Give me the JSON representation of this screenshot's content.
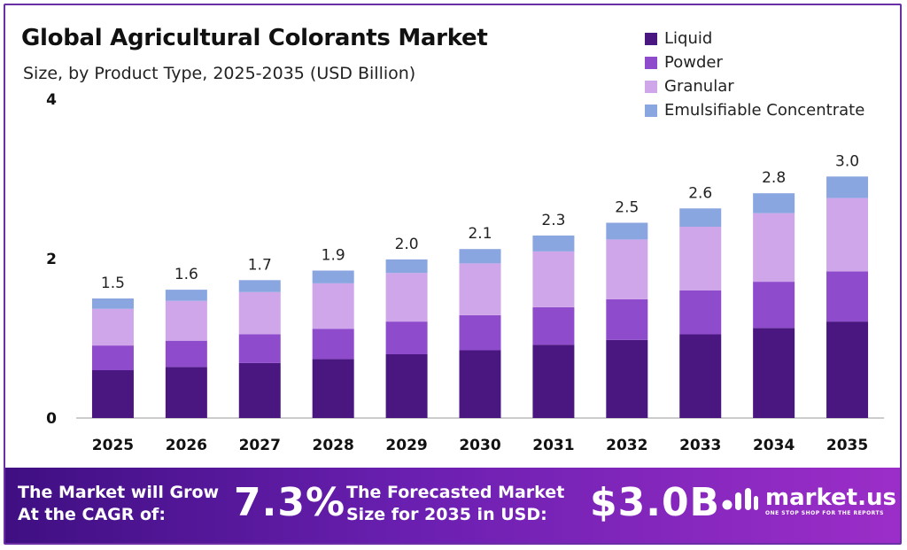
{
  "chart_data": {
    "type": "bar",
    "stacked": true,
    "title": "Global Agricultural Colorants Market",
    "subtitle": "Size, by Product Type, 2025-2035 (USD Billion)",
    "categories": [
      "2025",
      "2026",
      "2027",
      "2028",
      "2029",
      "2030",
      "2031",
      "2032",
      "2033",
      "2034",
      "2035"
    ],
    "series": [
      {
        "name": "Liquid",
        "color": "#4a1780",
        "values": [
          0.6,
          0.64,
          0.69,
          0.74,
          0.8,
          0.85,
          0.92,
          0.98,
          1.05,
          1.13,
          1.21
        ]
      },
      {
        "name": "Powder",
        "color": "#8e4ccc",
        "values": [
          0.31,
          0.33,
          0.36,
          0.38,
          0.41,
          0.44,
          0.47,
          0.51,
          0.55,
          0.58,
          0.63
        ]
      },
      {
        "name": "Granular",
        "color": "#cfa6ea",
        "values": [
          0.46,
          0.5,
          0.53,
          0.57,
          0.61,
          0.65,
          0.7,
          0.75,
          0.8,
          0.86,
          0.92
        ]
      },
      {
        "name": "Emulsifiable Concentrate",
        "color": "#8aa6e0",
        "values": [
          0.13,
          0.14,
          0.15,
          0.16,
          0.17,
          0.18,
          0.2,
          0.21,
          0.23,
          0.25,
          0.27
        ]
      }
    ],
    "totals": [
      "1.5",
      "1.6",
      "1.7",
      "1.9",
      "2.0",
      "2.1",
      "2.3",
      "2.5",
      "2.6",
      "2.8",
      "3.0"
    ],
    "ylim": [
      0,
      4
    ],
    "yticks": [
      "0",
      "2",
      "4"
    ],
    "grid": false,
    "legend_position": "top-right",
    "xlabel": "",
    "ylabel": ""
  },
  "banner": {
    "cagr_label": [
      "The Market will Grow",
      "At the CAGR of:"
    ],
    "cagr_value": "7.3%",
    "forecast_label": [
      "The Forecasted Market",
      "Size for 2035 in USD:"
    ],
    "forecast_value": "$3.0B",
    "brand_name": "market.us",
    "brand_tagline": "ONE STOP SHOP FOR THE REPORTS",
    "logo_icon": "market-us-logo-icon"
  }
}
